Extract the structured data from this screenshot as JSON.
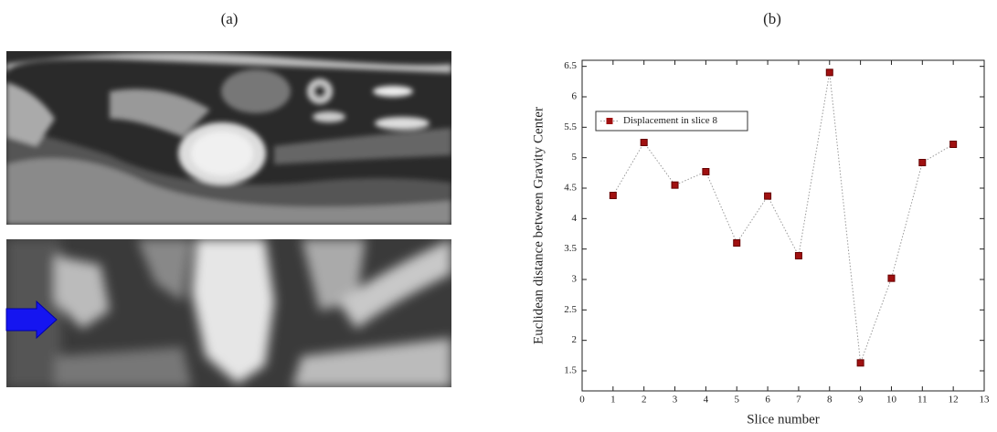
{
  "panels": {
    "a": "(a)",
    "b": "(b)"
  },
  "chart_data": {
    "type": "line",
    "xlabel": "Slice number",
    "ylabel": "Euclidean distance between Gravity Center",
    "x": [
      1,
      2,
      3,
      4,
      5,
      6,
      7,
      8,
      9,
      10,
      11,
      12
    ],
    "series": [
      {
        "name": "Displacement in slice 8",
        "color": "#a01010",
        "values": [
          4.38,
          5.25,
          4.55,
          4.77,
          3.6,
          4.37,
          3.39,
          6.4,
          1.63,
          3.02,
          4.92,
          5.22
        ]
      }
    ],
    "xlim": [
      0,
      13
    ],
    "xticks": [
      0,
      1,
      2,
      3,
      4,
      5,
      6,
      7,
      8,
      9,
      10,
      11,
      12,
      13
    ],
    "ylim": [
      1.17,
      6.6
    ],
    "yticks": [
      1.5,
      2,
      2.5,
      3,
      3.5,
      4,
      4.5,
      5,
      5.5,
      6,
      6.5
    ],
    "legend": "upper left",
    "grid": false
  }
}
